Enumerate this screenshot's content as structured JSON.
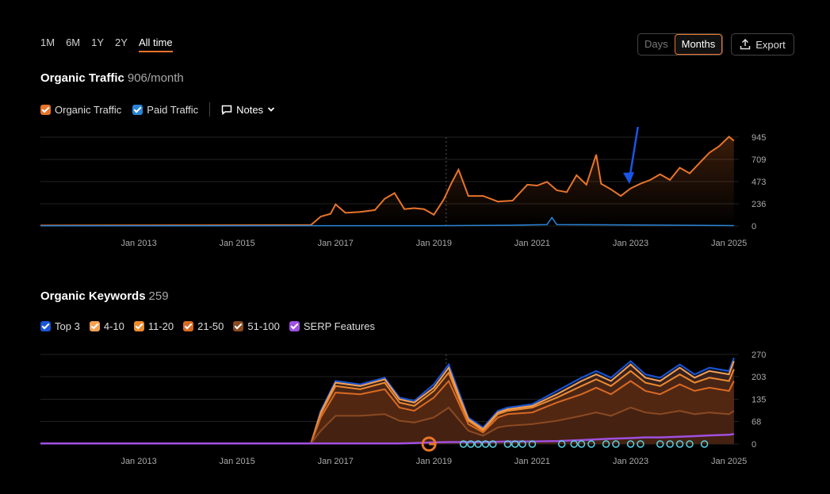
{
  "range_tabs": [
    "1M",
    "6M",
    "1Y",
    "2Y",
    "All time"
  ],
  "active_range": "All time",
  "view_toggle": {
    "days": "Days",
    "months": "Months"
  },
  "export_label": "Export",
  "traffic": {
    "title": "Organic Traffic",
    "metric": "906/month",
    "legend": [
      {
        "label": "Organic Traffic",
        "color": "#e8742a"
      },
      {
        "label": "Paid Traffic",
        "color": "#2a84d6"
      }
    ],
    "notes_label": "Notes"
  },
  "keywords": {
    "title": "Organic Keywords",
    "metric": "259",
    "legend": [
      {
        "label": "Top 3",
        "color": "#1a55d6"
      },
      {
        "label": "4-10",
        "color": "#f5a050"
      },
      {
        "label": "11-20",
        "color": "#ee8a2e"
      },
      {
        "label": "21-50",
        "color": "#d96a22"
      },
      {
        "label": "51-100",
        "color": "#8a4a22"
      },
      {
        "label": "SERP Features",
        "color": "#a050e0"
      }
    ]
  },
  "chart_data": [
    {
      "type": "line",
      "title": "Organic Traffic",
      "x_range": [
        2011.0,
        2025.2
      ],
      "ylim": [
        0,
        945
      ],
      "y_ticks": [
        0,
        236,
        473,
        709,
        945
      ],
      "x_tick_labels": [
        "Jan 2013",
        "Jan 2015",
        "Jan 2017",
        "Jan 2019",
        "Jan 2021",
        "Jan 2023",
        "Jan 2025"
      ],
      "x_ticks": [
        2013,
        2015,
        2017,
        2019,
        2021,
        2023,
        2025
      ],
      "grid": true,
      "series": [
        {
          "name": "Organic Traffic",
          "color": "#e8742a",
          "points": [
            [
              2011.0,
              5
            ],
            [
              2014.0,
              8
            ],
            [
              2016.5,
              10
            ],
            [
              2016.7,
              100
            ],
            [
              2016.9,
              130
            ],
            [
              2017.0,
              230
            ],
            [
              2017.2,
              140
            ],
            [
              2017.5,
              150
            ],
            [
              2017.8,
              170
            ],
            [
              2018.0,
              290
            ],
            [
              2018.2,
              350
            ],
            [
              2018.4,
              180
            ],
            [
              2018.6,
              190
            ],
            [
              2018.8,
              180
            ],
            [
              2019.0,
              120
            ],
            [
              2019.2,
              280
            ],
            [
              2019.35,
              450
            ],
            [
              2019.5,
              600
            ],
            [
              2019.7,
              320
            ],
            [
              2020.0,
              320
            ],
            [
              2020.3,
              260
            ],
            [
              2020.6,
              270
            ],
            [
              2020.9,
              440
            ],
            [
              2021.1,
              430
            ],
            [
              2021.3,
              470
            ],
            [
              2021.5,
              380
            ],
            [
              2021.7,
              360
            ],
            [
              2021.9,
              540
            ],
            [
              2022.1,
              440
            ],
            [
              2022.3,
              760
            ],
            [
              2022.4,
              450
            ],
            [
              2022.6,
              390
            ],
            [
              2022.8,
              320
            ],
            [
              2023.0,
              400
            ],
            [
              2023.2,
              450
            ],
            [
              2023.4,
              490
            ],
            [
              2023.6,
              550
            ],
            [
              2023.8,
              490
            ],
            [
              2024.0,
              620
            ],
            [
              2024.2,
              560
            ],
            [
              2024.4,
              670
            ],
            [
              2024.6,
              780
            ],
            [
              2024.8,
              850
            ],
            [
              2025.0,
              950
            ],
            [
              2025.1,
              906
            ]
          ]
        },
        {
          "name": "Paid Traffic",
          "color": "#2a84d6",
          "points": [
            [
              2011.0,
              2
            ],
            [
              2019.0,
              3
            ],
            [
              2020.5,
              8
            ],
            [
              2021.3,
              15
            ],
            [
              2021.4,
              90
            ],
            [
              2021.5,
              15
            ],
            [
              2025.1,
              4
            ]
          ]
        }
      ]
    },
    {
      "type": "area",
      "title": "Organic Keywords",
      "x_range": [
        2011.0,
        2025.2
      ],
      "ylim": [
        0,
        270
      ],
      "y_ticks": [
        0,
        68,
        135,
        203,
        270
      ],
      "x_tick_labels": [
        "Jan 2013",
        "Jan 2015",
        "Jan 2017",
        "Jan 2019",
        "Jan 2021",
        "Jan 2023",
        "Jan 2025"
      ],
      "x_ticks": [
        2013,
        2015,
        2017,
        2019,
        2021,
        2023,
        2025
      ],
      "grid": true,
      "x": [
        2011.0,
        2016.5,
        2016.7,
        2017.0,
        2017.5,
        2018.0,
        2018.3,
        2018.6,
        2019.0,
        2019.3,
        2019.5,
        2019.7,
        2020.0,
        2020.3,
        2020.5,
        2021.0,
        2021.5,
        2022.0,
        2022.3,
        2022.6,
        2023.0,
        2023.3,
        2023.6,
        2024.0,
        2024.3,
        2024.6,
        2025.0,
        2025.1
      ],
      "series": [
        {
          "name": "Top 3",
          "color": "#1a55d6",
          "values": [
            2,
            2,
            100,
            190,
            180,
            200,
            140,
            130,
            180,
            240,
            160,
            80,
            50,
            100,
            110,
            120,
            160,
            200,
            220,
            200,
            250,
            210,
            200,
            240,
            210,
            230,
            220,
            260
          ]
        },
        {
          "name": "4-10",
          "color": "#f5a050",
          "values": [
            2,
            2,
            95,
            185,
            175,
            195,
            135,
            125,
            170,
            230,
            150,
            75,
            45,
            95,
            105,
            115,
            150,
            190,
            210,
            190,
            240,
            200,
            190,
            230,
            200,
            220,
            210,
            250
          ]
        },
        {
          "name": "11-20",
          "color": "#ee8a2e",
          "values": [
            2,
            2,
            90,
            175,
            165,
            185,
            125,
            115,
            160,
            215,
            140,
            70,
            40,
            90,
            100,
            110,
            140,
            175,
            195,
            175,
            220,
            185,
            175,
            210,
            185,
            200,
            190,
            225
          ]
        },
        {
          "name": "21-50",
          "color": "#d96a22",
          "values": [
            2,
            2,
            80,
            155,
            150,
            165,
            110,
            100,
            140,
            190,
            125,
            60,
            35,
            80,
            90,
            95,
            125,
            150,
            170,
            150,
            190,
            160,
            150,
            180,
            160,
            170,
            160,
            190
          ]
        },
        {
          "name": "51-100",
          "color": "#8a4a22",
          "values": [
            2,
            2,
            40,
            85,
            85,
            90,
            70,
            65,
            80,
            110,
            75,
            40,
            25,
            50,
            55,
            60,
            70,
            85,
            95,
            85,
            110,
            95,
            90,
            100,
            90,
            95,
            90,
            100
          ]
        },
        {
          "name": "SERP Features",
          "color": "#a050e0",
          "values": [
            2,
            2,
            2,
            2,
            2,
            2,
            2,
            3,
            5,
            6,
            6,
            6,
            6,
            7,
            8,
            8,
            9,
            12,
            14,
            16,
            18,
            20,
            20,
            22,
            24,
            26,
            28,
            30
          ]
        }
      ]
    }
  ]
}
